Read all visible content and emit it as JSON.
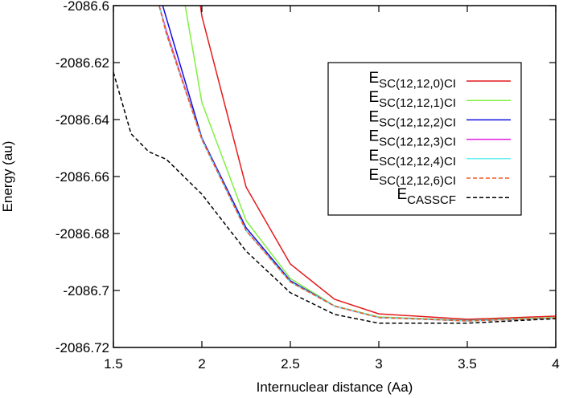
{
  "chart_data": {
    "type": "line",
    "title": "",
    "xlabel": "Internuclear distance (Aa)",
    "ylabel": "Energy (au)",
    "xlim": [
      1.5,
      4
    ],
    "ylim": [
      -2086.72,
      -2086.6
    ],
    "xticks": [
      1.5,
      2,
      2.5,
      3,
      3.5,
      4
    ],
    "xtick_labels": [
      "1.5",
      "2",
      "2.5",
      "3",
      "3.5",
      "4"
    ],
    "yticks": [
      -2086.6,
      -2086.62,
      -2086.64,
      -2086.66,
      -2086.68,
      -2086.7,
      -2086.72
    ],
    "ytick_labels": [
      "-2086.6",
      "-2086.62",
      "-2086.64",
      "-2086.66",
      "-2086.68",
      "-2086.7",
      "-2086.72"
    ],
    "grid": false,
    "legend_placement": "top-right",
    "series": [
      {
        "name": "E_SC(12,12,0)CI",
        "base": "E",
        "sub": "SC(12,12,0)CI",
        "color": "#e41a1c",
        "dash": false,
        "x": [
          1.9,
          2.0,
          2.25,
          2.5,
          2.75,
          3.0,
          3.5,
          4.0
        ],
        "y": [
          -2086.56,
          -2086.6037,
          -2086.6637,
          -2086.6907,
          -2086.7031,
          -2086.7082,
          -2086.7101,
          -2086.709
        ]
      },
      {
        "name": "E_SC(12,12,1)CI",
        "base": "E",
        "sub": "SC(12,12,1)CI",
        "color": "#80f040",
        "dash": false,
        "x": [
          1.9,
          2.0,
          2.25,
          2.5,
          2.75,
          3.0,
          3.5,
          4.0
        ],
        "y": [
          -2086.598,
          -2086.634,
          -2086.6755,
          -2086.6958,
          -2086.7054,
          -2086.7093,
          -2086.7105,
          -2086.7095
        ]
      },
      {
        "name": "E_SC(12,12,2)CI",
        "base": "E",
        "sub": "SC(12,12,2)CI",
        "color": "#1010e0",
        "dash": false,
        "x": [
          1.75,
          1.8,
          2.0,
          2.25,
          2.5,
          2.75,
          3.0,
          3.5,
          4.0
        ],
        "y": [
          -2086.594,
          -2086.6045,
          -2086.6465,
          -2086.678,
          -2086.6966,
          -2086.7055,
          -2086.7095,
          -2086.7106,
          -2086.7097
        ]
      },
      {
        "name": "E_SC(12,12,3)CI",
        "base": "E",
        "sub": "SC(12,12,3)CI",
        "color": "#e020e0",
        "dash": false,
        "x": [
          1.75,
          1.8,
          2.0,
          2.25,
          2.5,
          2.75,
          3.0,
          3.5,
          4.0
        ],
        "y": [
          -2086.598,
          -2086.609,
          -2086.647,
          -2086.679,
          -2086.697,
          -2086.7055,
          -2086.7095,
          -2086.7107,
          -2086.7097
        ]
      },
      {
        "name": "E_SC(12,12,4)CI",
        "base": "E",
        "sub": "SC(12,12,4)CI",
        "color": "#70f0f0",
        "dash": false,
        "x": [
          1.75,
          1.8,
          2.0,
          2.25,
          2.5,
          2.75,
          3.0,
          3.5,
          4.0
        ],
        "y": [
          -2086.598,
          -2086.61,
          -2086.647,
          -2086.679,
          -2086.697,
          -2086.7055,
          -2086.7095,
          -2086.7107,
          -2086.7097
        ]
      },
      {
        "name": "E_SC(12,12,6)CI",
        "base": "E",
        "sub": "SC(12,12,6)CI",
        "color": "#f05a20",
        "dash": true,
        "x": [
          1.75,
          1.8,
          2.0,
          2.25,
          2.5,
          2.75,
          3.0,
          3.5,
          4.0
        ],
        "y": [
          -2086.598,
          -2086.61,
          -2086.647,
          -2086.679,
          -2086.697,
          -2086.7055,
          -2086.7095,
          -2086.7107,
          -2086.7097
        ]
      },
      {
        "name": "E_CASSCF",
        "base": "E",
        "sub": "CASSCF",
        "color": "#000000",
        "dash": true,
        "x": [
          1.5,
          1.6,
          1.7,
          1.8,
          2.0,
          2.25,
          2.5,
          2.75,
          3.0,
          3.5,
          4.0
        ],
        "y": [
          -2086.6234,
          -2086.645,
          -2086.6513,
          -2086.654,
          -2086.6662,
          -2086.6862,
          -2086.7008,
          -2086.7084,
          -2086.7115,
          -2086.7115,
          -2086.7099
        ]
      }
    ]
  }
}
